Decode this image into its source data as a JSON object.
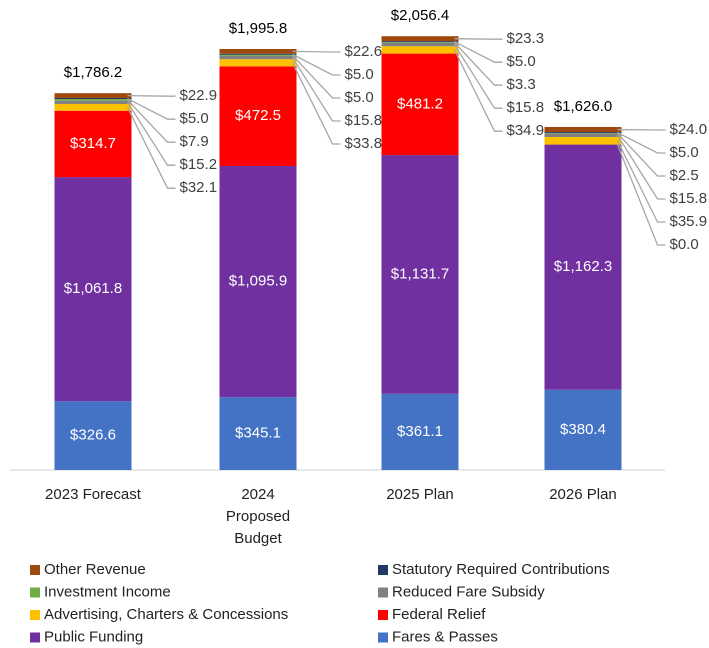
{
  "chart_data": {
    "type": "stacked_bar",
    "categories": [
      "2023 Forecast",
      "2024 Proposed Budget",
      "2025 Plan",
      "2026 Plan"
    ],
    "ylim": [
      0,
      2100
    ],
    "series": [
      {
        "name": "Fares & Passes",
        "color": "#4472c4",
        "values": [
          326.6,
          345.1,
          361.1,
          380.4
        ],
        "value_labels": [
          "$326.6",
          "$345.1",
          "$361.1",
          "$380.4"
        ]
      },
      {
        "name": "Public Funding",
        "color": "#7030a0",
        "values": [
          1061.8,
          1095.9,
          1131.7,
          1162.3
        ],
        "value_labels": [
          "$1,061.8",
          "$1,095.9",
          "$1,131.7",
          "$1,162.3"
        ]
      },
      {
        "name": "Federal Relief",
        "color": "#ff0000",
        "values": [
          314.7,
          472.5,
          481.2,
          0.0
        ],
        "value_labels": [
          "$314.7",
          "$472.5",
          "$481.2",
          "$0.0"
        ]
      },
      {
        "name": "Advertising, Charters & Concessions",
        "color": "#ffc000",
        "values": [
          32.1,
          33.8,
          34.9,
          35.9
        ],
        "value_labels": [
          "$32.1",
          "$33.8",
          "$34.9",
          "$35.9"
        ]
      },
      {
        "name": "Reduced Fare Subsidy",
        "color": "#808080",
        "values": [
          15.2,
          15.8,
          15.8,
          15.8
        ],
        "value_labels": [
          "$15.2",
          "$15.8",
          "$15.8",
          "$15.8"
        ]
      },
      {
        "name": "Investment Income",
        "color": "#70ad47",
        "values": [
          7.9,
          5.0,
          3.3,
          2.5
        ],
        "value_labels": [
          "$7.9",
          "$5.0",
          "$3.3",
          "$2.5"
        ]
      },
      {
        "name": "Statutory Required Contributions",
        "color": "#1f3864",
        "values": [
          5.0,
          5.0,
          5.0,
          5.0
        ],
        "value_labels": [
          "$5.0",
          "$5.0",
          "$5.0",
          "$5.0"
        ]
      },
      {
        "name": "Other Revenue",
        "color": "#9e480e",
        "values": [
          22.9,
          22.6,
          23.3,
          24.0
        ],
        "value_labels": [
          "$22.9",
          "$22.6",
          "$23.3",
          "$24.0"
        ]
      }
    ],
    "totals": {
      "values": [
        1786.2,
        1995.8,
        2056.4,
        1626.0
      ],
      "value_labels": [
        "$1,786.2",
        "$1,995.8",
        "$2,056.4",
        "$1,626.0"
      ]
    }
  }
}
